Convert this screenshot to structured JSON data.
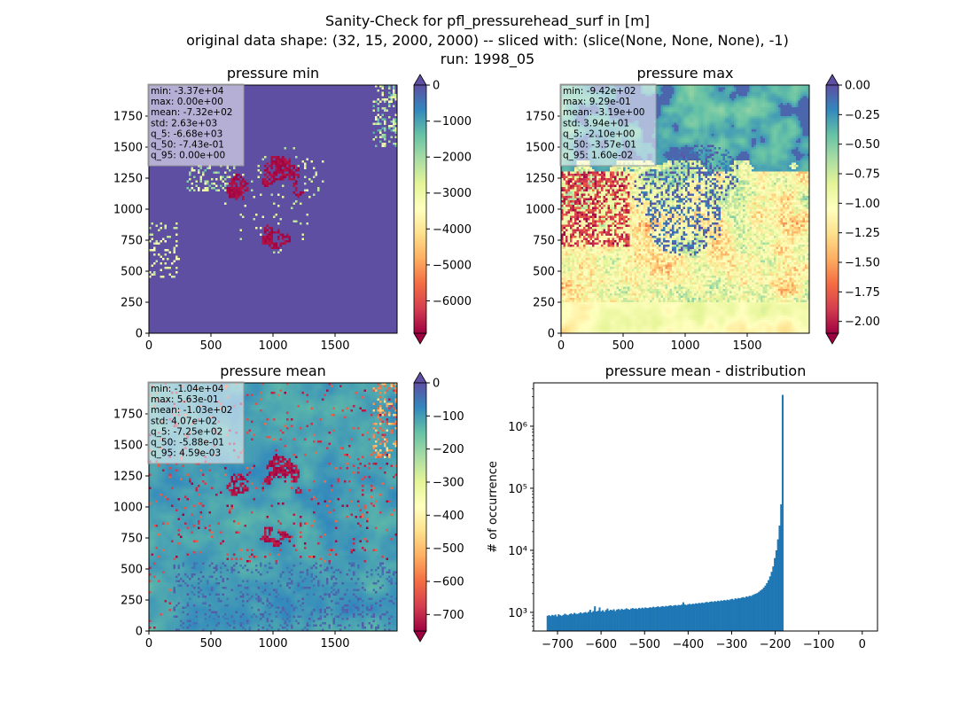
{
  "suptitle": {
    "line1": "Sanity-Check for pfl_pressurehead_surf in [m]",
    "line2": "original data shape: (32, 15, 2000, 2000) -- sliced with: (slice(None, None, None), -1)",
    "line3": "run: 1998_05"
  },
  "colors": {
    "cmap": [
      "#9e0142",
      "#d53e4f",
      "#f46d43",
      "#fdae61",
      "#fee08b",
      "#ffffbf",
      "#e6f598",
      "#abdda4",
      "#66c2a5",
      "#3288bd",
      "#5e4fa2"
    ],
    "bar": "#1f77b4"
  },
  "chart_data": [
    {
      "type": "heatmap",
      "title": "pressure min",
      "xticks": [
        "0",
        "500",
        "1000",
        "1500"
      ],
      "yticks": [
        "0",
        "250",
        "500",
        "750",
        "1000",
        "1250",
        "1500",
        "1750"
      ],
      "x_range": [
        0,
        2000
      ],
      "y_range": [
        0,
        2000
      ],
      "colorbar": {
        "range": [
          -6900,
          0
        ],
        "extend": "both",
        "ticks": [
          "0",
          "−1000",
          "−2000",
          "−3000",
          "−4000",
          "−5000",
          "−6000"
        ],
        "tick_values": [
          0,
          -1000,
          -2000,
          -3000,
          -4000,
          -5000,
          -6000
        ]
      },
      "stats": [
        "min: -3.37e+04",
        "max: 0.00e+00",
        "mean: -7.32e+02",
        "std: 2.63e+03",
        "q_5: -6.68e+03",
        "q_50: -7.43e-01",
        "q_95: 0.00e+00"
      ]
    },
    {
      "type": "heatmap",
      "title": "pressure max",
      "xticks": [
        "0",
        "500",
        "1000",
        "1500"
      ],
      "yticks": [
        "0",
        "250",
        "500",
        "750",
        "1000",
        "1250",
        "1500",
        "1750"
      ],
      "x_range": [
        0,
        2000
      ],
      "y_range": [
        0,
        2000
      ],
      "colorbar": {
        "range": [
          -2.1,
          0
        ],
        "extend": "both",
        "ticks": [
          "0.00",
          "−0.25",
          "−0.50",
          "−0.75",
          "−1.00",
          "−1.25",
          "−1.50",
          "−1.75",
          "−2.00"
        ],
        "tick_values": [
          0,
          -0.25,
          -0.5,
          -0.75,
          -1.0,
          -1.25,
          -1.5,
          -1.75,
          -2.0
        ]
      },
      "stats": [
        "min: -9.42e+02",
        "max: 9.29e-01",
        "mean: -3.19e+00",
        "std: 3.94e+01",
        "q_5: -2.10e+00",
        "q_50: -3.57e-01",
        "q_95: 1.60e-02"
      ]
    },
    {
      "type": "heatmap",
      "title": "pressure mean",
      "xticks": [
        "0",
        "500",
        "1000",
        "1500"
      ],
      "yticks": [
        "0",
        "250",
        "500",
        "750",
        "1000",
        "1250",
        "1500",
        "1750"
      ],
      "x_range": [
        0,
        2000
      ],
      "y_range": [
        0,
        2000
      ],
      "colorbar": {
        "range": [
          -750,
          0
        ],
        "extend": "both",
        "ticks": [
          "0",
          "−100",
          "−200",
          "−300",
          "−400",
          "−500",
          "−600",
          "−700"
        ],
        "tick_values": [
          0,
          -100,
          -200,
          -300,
          -400,
          -500,
          -600,
          -700
        ]
      },
      "stats": [
        "min: -1.04e+04",
        "max: 5.63e-01",
        "mean: -1.03e+02",
        "std: 4.07e+02",
        "q_5: -7.25e+02",
        "q_50: -5.88e-01",
        "q_95: 4.59e-03"
      ]
    },
    {
      "type": "bar",
      "title": "pressure mean - distribution",
      "ylabel": "# of occurrence",
      "yscale": "log",
      "xlim": [
        -755,
        35
      ],
      "ylim": [
        500,
        5000000
      ],
      "xticks": [
        "−700",
        "−600",
        "−500",
        "−400",
        "−300",
        "−200",
        "−100",
        "0"
      ],
      "xtick_values": [
        -700,
        -600,
        -500,
        -400,
        -300,
        -200,
        -100,
        0
      ],
      "yticks": [
        "10³",
        "10⁴",
        "10⁵",
        "10⁶"
      ],
      "ytick_values": [
        1000,
        10000,
        100000,
        1000000
      ],
      "bin_range": [
        -725,
        0
      ],
      "bin_width": 3.625,
      "values": [
        880,
        900,
        870,
        910,
        890,
        920,
        860,
        930,
        900,
        880,
        910,
        950,
        920,
        900,
        940,
        960,
        930,
        980,
        950,
        940,
        970,
        1000,
        960,
        990,
        1010,
        980,
        1020,
        1100,
        1000,
        1050,
        1250,
        1030,
        1060,
        1200,
        1040,
        1080,
        1020,
        1090,
        1150,
        1060,
        1100,
        1080,
        1120,
        1050,
        1110,
        1130,
        1090,
        1140,
        1100,
        1120,
        1160,
        1130,
        1100,
        1150,
        1170,
        1140,
        1160,
        1130,
        1180,
        1150,
        1190,
        1160,
        1200,
        1170,
        1180,
        1210,
        1190,
        1230,
        1200,
        1220,
        1250,
        1210,
        1240,
        1260,
        1230,
        1270,
        1250,
        1280,
        1300,
        1260,
        1290,
        1310,
        1280,
        1320,
        1300,
        1330,
        1450,
        1340,
        1310,
        1350,
        1370,
        1340,
        1380,
        1360,
        1400,
        1380,
        1420,
        1400,
        1440,
        1410,
        1450,
        1470,
        1440,
        1480,
        1500,
        1470,
        1520,
        1490,
        1540,
        1510,
        1560,
        1530,
        1580,
        1550,
        1600,
        1570,
        1620,
        1650,
        1600,
        1680,
        1650,
        1700,
        1680,
        1730,
        1760,
        1720,
        1800,
        1780,
        1850,
        1830,
        1900,
        1950,
        2000,
        2050,
        2150,
        2250,
        2350,
        2500,
        2700,
        2950,
        3300,
        3800,
        4500,
        5500,
        7500,
        10000,
        15000,
        25000,
        55000,
        3200000
      ]
    }
  ]
}
